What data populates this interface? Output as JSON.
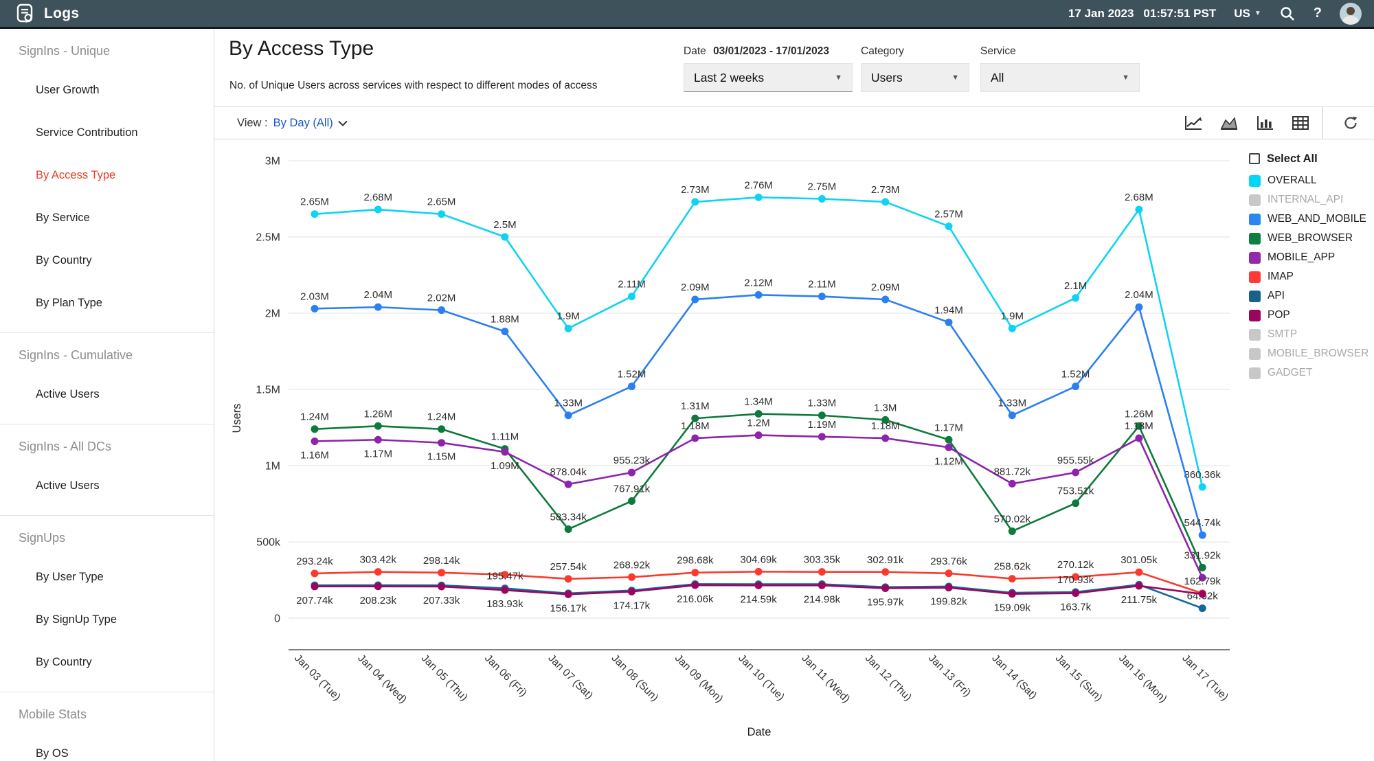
{
  "topbar": {
    "app_title": "Logs",
    "date": "17 Jan 2023",
    "time": "01:57:51 PST",
    "region": "US",
    "help_label": "?"
  },
  "sidebar": {
    "sections": [
      {
        "header": "SignIns - Unique",
        "items": [
          {
            "label": "User Growth",
            "active": false
          },
          {
            "label": "Service Contribution",
            "active": false
          },
          {
            "label": "By Access Type",
            "active": true
          },
          {
            "label": "By Service",
            "active": false
          },
          {
            "label": "By Country",
            "active": false
          },
          {
            "label": "By Plan Type",
            "active": false
          }
        ]
      },
      {
        "header": "SignIns - Cumulative",
        "items": [
          {
            "label": "Active Users",
            "active": false
          }
        ]
      },
      {
        "header": "SignIns - All DCs",
        "items": [
          {
            "label": "Active Users",
            "active": false
          }
        ]
      },
      {
        "header": "SignUps",
        "items": [
          {
            "label": "By User Type",
            "active": false
          },
          {
            "label": "By SignUp Type",
            "active": false
          },
          {
            "label": "By Country",
            "active": false
          }
        ]
      },
      {
        "header": "Mobile Stats",
        "items": [
          {
            "label": "By OS",
            "active": false
          }
        ]
      }
    ]
  },
  "header": {
    "title": "By Access Type",
    "subtitle": "No. of Unique Users across services with respect to different modes of access",
    "filters": {
      "date": {
        "label": "Date",
        "range": "03/01/2023 - 17/01/2023",
        "value": "Last 2 weeks"
      },
      "category": {
        "label": "Category",
        "value": "Users"
      },
      "service": {
        "label": "Service",
        "value": "All"
      }
    }
  },
  "toolbar": {
    "view_prefix": "View :",
    "view_value": "By Day  (All)"
  },
  "legend": {
    "select_all_label": "Select All",
    "items": [
      {
        "label": "OVERALL",
        "color": "#00d7f2",
        "enabled": true
      },
      {
        "label": "INTERNAL_API",
        "color": "#c8c8c8",
        "enabled": false
      },
      {
        "label": "WEB_AND_MOBILE",
        "color": "#2b86f0",
        "enabled": true
      },
      {
        "label": "WEB_BROWSER",
        "color": "#0c8040",
        "enabled": true
      },
      {
        "label": "MOBILE_APP",
        "color": "#9327ad",
        "enabled": true
      },
      {
        "label": "IMAP",
        "color": "#fd3b35",
        "enabled": true
      },
      {
        "label": "API",
        "color": "#17618d",
        "enabled": true
      },
      {
        "label": "POP",
        "color": "#9a0560",
        "enabled": true
      },
      {
        "label": "SMTP",
        "color": "#c8c8c8",
        "enabled": false
      },
      {
        "label": "MOBILE_BROWSER",
        "color": "#c8c8c8",
        "enabled": false
      },
      {
        "label": "GADGET",
        "color": "#c8c8c8",
        "enabled": false
      }
    ]
  },
  "chart_data": {
    "type": "line",
    "unit": "millions of users",
    "ylabel": "Users",
    "xlabel": "Date",
    "ylim": [
      0,
      3000000
    ],
    "grid": true,
    "legend_position": "right",
    "yticks": [
      "0",
      "500k",
      "1M",
      "1.5M",
      "2M",
      "2.5M",
      "3M"
    ],
    "x": [
      "Jan 03 (Tue)",
      "Jan 04 (Wed)",
      "Jan 05 (Thu)",
      "Jan 06 (Fri)",
      "Jan 07 (Sat)",
      "Jan 08 (Sun)",
      "Jan 09 (Mon)",
      "Jan 10 (Tue)",
      "Jan 11 (Wed)",
      "Jan 12 (Thu)",
      "Jan 13 (Fri)",
      "Jan 14 (Sat)",
      "Jan 15 (Sun)",
      "Jan 16 (Mon)",
      "Jan 17 (Tue)"
    ],
    "series": [
      {
        "name": "OVERALL",
        "color": "#0fd3f2",
        "values": [
          2.65,
          2.68,
          2.65,
          2.5,
          1.9,
          2.11,
          2.73,
          2.76,
          2.75,
          2.73,
          2.57,
          1.9,
          2.1,
          2.68,
          0.86036
        ],
        "labels": [
          "2.65M",
          "2.68M",
          "2.65M",
          "2.5M",
          "1.9M",
          "2.11M",
          "2.73M",
          "2.76M",
          "2.75M",
          "2.73M",
          "2.57M",
          "1.9M",
          "2.1M",
          "2.68M",
          "860.36k"
        ],
        "label_side": [
          "a",
          "a",
          "a",
          "a",
          "a",
          "a",
          "a",
          "a",
          "a",
          "a",
          "a",
          "a",
          "a",
          "a",
          "a"
        ]
      },
      {
        "name": "WEB_AND_MOBILE",
        "color": "#2b7ff2",
        "values": [
          2.03,
          2.04,
          2.02,
          1.88,
          1.33,
          1.52,
          2.09,
          2.12,
          2.11,
          2.09,
          1.94,
          1.33,
          1.52,
          2.04,
          0.54474
        ],
        "labels": [
          "2.03M",
          "2.04M",
          "2.02M",
          "1.88M",
          "1.33M",
          "1.52M",
          "2.09M",
          "2.12M",
          "2.11M",
          "2.09M",
          "1.94M",
          "1.33M",
          "1.52M",
          "2.04M",
          "544.74k"
        ],
        "label_side": [
          "a",
          "a",
          "a",
          "a",
          "a",
          "a",
          "a",
          "a",
          "a",
          "a",
          "a",
          "a",
          "a",
          "a",
          "a"
        ]
      },
      {
        "name": "WEB_BROWSER",
        "color": "#0d7a3c",
        "values": [
          1.24,
          1.26,
          1.24,
          1.11,
          0.58334,
          0.76791,
          1.31,
          1.34,
          1.33,
          1.3,
          1.17,
          0.57002,
          0.75351,
          1.26,
          0.33192
        ],
        "labels": [
          "1.24M",
          "1.26M",
          "1.24M",
          "1.11M",
          "583.34k",
          "767.91k",
          "1.31M",
          "1.34M",
          "1.33M",
          "1.3M",
          "1.17M",
          "570.02k",
          "753.51k",
          "1.26M",
          "331.92k"
        ],
        "label_side": [
          "a",
          "a",
          "a",
          "a",
          "a",
          "a",
          "a",
          "a",
          "a",
          "a",
          "a",
          "a",
          "a",
          "a",
          "a"
        ]
      },
      {
        "name": "MOBILE_APP",
        "color": "#8d24ab",
        "values": [
          1.16,
          1.17,
          1.15,
          1.09,
          0.87804,
          0.95523,
          1.18,
          1.2,
          1.19,
          1.18,
          1.12,
          0.88172,
          0.95555,
          1.18,
          0.265
        ],
        "labels": [
          "1.16M",
          "1.17M",
          "1.15M",
          "1.09M",
          "878.04k",
          "955.23k",
          "1.18M",
          "1.2M",
          "1.19M",
          "1.18M",
          "1.12M",
          "881.72k",
          "955.55k",
          "1.18M",
          ""
        ],
        "label_side": [
          "b",
          "b",
          "b",
          "b",
          "a",
          "a",
          "a",
          "a",
          "a",
          "a",
          "b",
          "a",
          "a",
          "a",
          ""
        ]
      },
      {
        "name": "IMAP",
        "color": "#fb3a2e",
        "values": [
          0.29324,
          0.30342,
          0.29814,
          0.285,
          0.25754,
          0.26892,
          0.29868,
          0.30469,
          0.30335,
          0.30291,
          0.29376,
          0.25862,
          0.27012,
          0.30105,
          0.16279
        ],
        "labels": [
          "293.24k",
          "303.42k",
          "298.14k",
          "",
          "257.54k",
          "268.92k",
          "298.68k",
          "304.69k",
          "303.35k",
          "302.91k",
          "293.76k",
          "258.62k",
          "270.12k",
          "301.05k",
          "162.79k"
        ],
        "label_side": [
          "a",
          "a",
          "a",
          "",
          "a",
          "a",
          "a",
          "a",
          "a",
          "a",
          "a",
          "a",
          "a",
          "a",
          "a"
        ]
      },
      {
        "name": "API",
        "color": "#17679a",
        "values": [
          0.2157,
          0.2162,
          0.2153,
          0.19547,
          0.1625,
          0.1815,
          0.2235,
          0.2225,
          0.2228,
          0.2035,
          0.2075,
          0.1665,
          0.17093,
          0.2195,
          0.06462
        ],
        "labels": [
          "",
          "",
          "",
          "195.47k",
          "",
          "",
          "",
          "",
          "",
          "",
          "",
          "",
          "170.93k",
          "",
          "64.62k"
        ],
        "label_side": [
          "",
          "",
          "",
          "a",
          "",
          "",
          "",
          "",
          "",
          "",
          "",
          "",
          "a",
          "",
          "a"
        ]
      },
      {
        "name": "POP",
        "color": "#9b0560",
        "values": [
          0.20774,
          0.20823,
          0.20733,
          0.18393,
          0.15617,
          0.17417,
          0.21606,
          0.21459,
          0.21498,
          0.19597,
          0.19982,
          0.15909,
          0.1637,
          0.21175,
          0.158
        ],
        "labels": [
          "207.74k",
          "208.23k",
          "207.33k",
          "183.93k",
          "156.17k",
          "174.17k",
          "216.06k",
          "214.59k",
          "214.98k",
          "195.97k",
          "199.82k",
          "159.09k",
          "163.7k",
          "211.75k",
          ""
        ],
        "label_side": [
          "b",
          "b",
          "b",
          "b",
          "b",
          "b",
          "b",
          "b",
          "b",
          "b",
          "b",
          "b",
          "b",
          "b",
          ""
        ]
      }
    ]
  }
}
